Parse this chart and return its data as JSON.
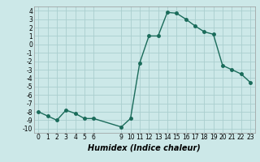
{
  "x": [
    0,
    1,
    2,
    3,
    4,
    5,
    6,
    9,
    10,
    11,
    12,
    13,
    14,
    15,
    16,
    17,
    18,
    19,
    20,
    21,
    22,
    23
  ],
  "y": [
    -8,
    -8.5,
    -9,
    -7.8,
    -8.2,
    -8.8,
    -8.8,
    -9.8,
    -8.8,
    -2.2,
    1.0,
    1.0,
    3.8,
    3.7,
    3.0,
    2.2,
    1.5,
    1.2,
    -2.5,
    -3.0,
    -3.5,
    -4.5
  ],
  "line_color": "#1a6b5a",
  "marker_color": "#1a6b5a",
  "bg_color": "#cce8e8",
  "grid_color": "#aacece",
  "xlabel": "Humidex (Indice chaleur)",
  "xlim": [
    -0.5,
    23.5
  ],
  "ylim": [
    -10.5,
    4.5
  ],
  "xticks": [
    0,
    1,
    2,
    3,
    4,
    5,
    6,
    9,
    10,
    11,
    12,
    13,
    14,
    15,
    16,
    17,
    18,
    19,
    20,
    21,
    22,
    23
  ],
  "yticks": [
    -10,
    -9,
    -8,
    -7,
    -6,
    -5,
    -4,
    -3,
    -2,
    -1,
    0,
    1,
    2,
    3,
    4
  ],
  "tick_fontsize": 5.5,
  "xlabel_fontsize": 7,
  "marker_size": 2.5,
  "line_width": 1.0
}
